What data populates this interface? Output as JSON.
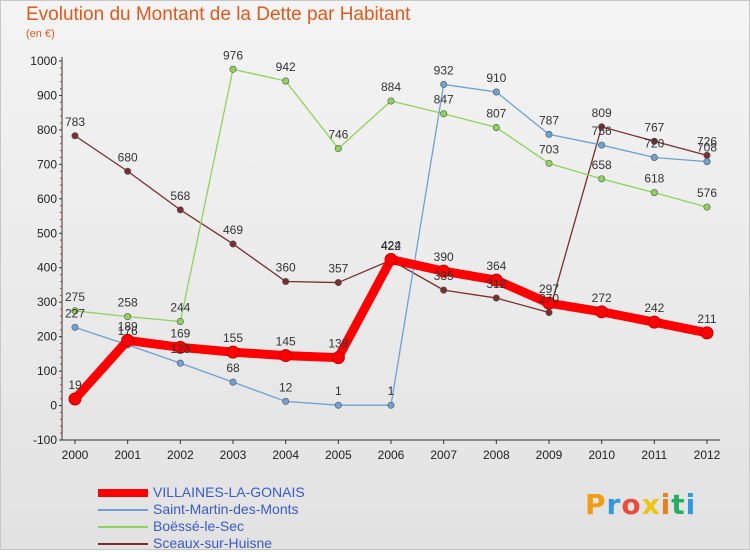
{
  "header": {
    "title": "Evolution du Montant de la Dette par Habitant",
    "unit": "(en €)"
  },
  "logo": {
    "text": "Proxiti",
    "letters": [
      "P",
      "r",
      "o",
      "x",
      "i",
      "t",
      "i"
    ],
    "colors": [
      "#f39c12",
      "#3498db",
      "#e74c3c",
      "#f1c40f",
      "#e67e22",
      "#27ae60",
      "#3498db"
    ]
  },
  "chart_data": {
    "type": "line",
    "title": "Evolution du Montant de la Dette par Habitant",
    "ylabel": "(en €)",
    "xlabel": "",
    "x": [
      "2000",
      "2001",
      "2002",
      "2003",
      "2004",
      "2005",
      "2006",
      "2007",
      "2008",
      "2009",
      "2010",
      "2011",
      "2012"
    ],
    "ylim": [
      -100,
      1000
    ],
    "yticks": [
      -100,
      0,
      100,
      200,
      300,
      400,
      500,
      600,
      700,
      800,
      900,
      1000
    ],
    "grid": false,
    "legend": "bottom-left",
    "series": [
      {
        "name": "VILLAINES-LA-GONAIS",
        "color": "#ff0000",
        "values": [
          19,
          189,
          169,
          155,
          145,
          139,
          424,
          390,
          364,
          297,
          272,
          242,
          211
        ]
      },
      {
        "name": "Saint-Martin-des-Monts",
        "color": "#6ea1d4",
        "values": [
          227,
          176,
          123,
          68,
          12,
          1,
          1,
          932,
          910,
          787,
          756,
          720,
          708
        ]
      },
      {
        "name": "Boëssé-le-Sec",
        "color": "#8ed35c",
        "values": [
          275,
          258,
          244,
          976,
          942,
          746,
          884,
          847,
          807,
          703,
          658,
          618,
          576
        ]
      },
      {
        "name": "Sceaux-sur-Huisne",
        "color": "#7a2e2e",
        "values": [
          783,
          680,
          568,
          469,
          360,
          357,
          422,
          335,
          312,
          270,
          809,
          767,
          726
        ]
      }
    ]
  }
}
